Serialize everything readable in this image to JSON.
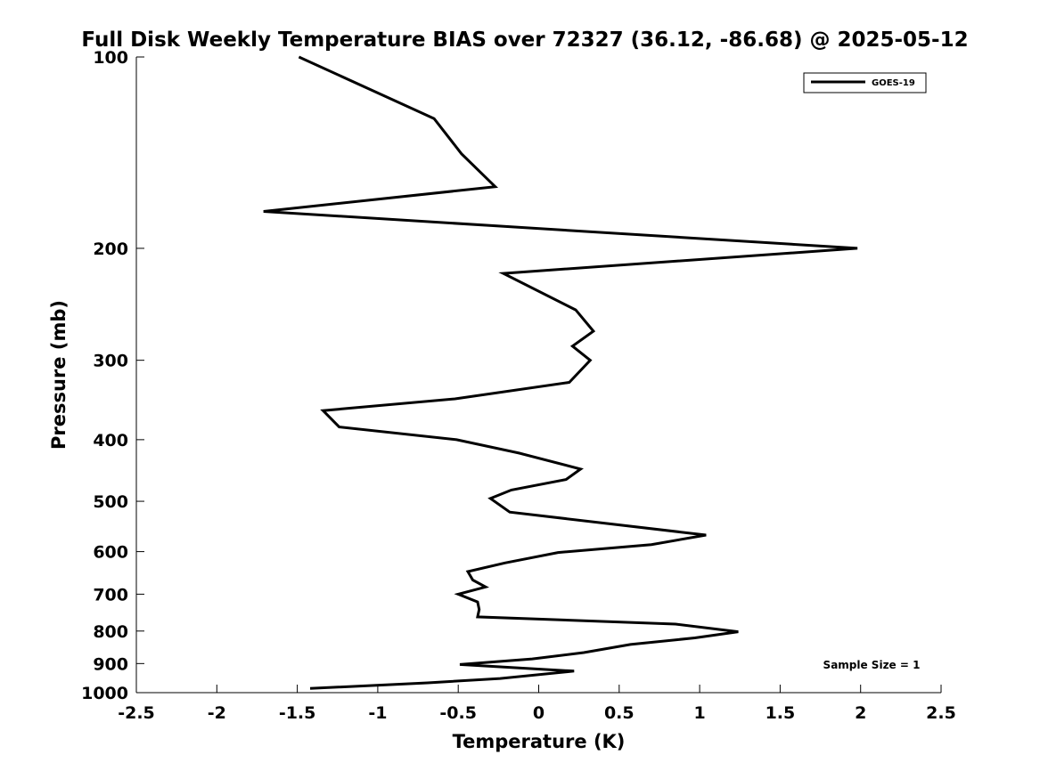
{
  "chart_data": {
    "type": "line",
    "title": "Full Disk Weekly Temperature BIAS over 72327 (36.12, -86.68) @ 2025-05-12",
    "xlabel": "Temperature (K)",
    "ylabel": "Pressure (mb)",
    "xlim": [
      -2.5,
      2.5
    ],
    "ylim": [
      1000,
      100
    ],
    "yscale": "log",
    "x_ticks": [
      "-2.5",
      "-2",
      "-1.5",
      "-1",
      "-0.5",
      "0",
      "0.5",
      "1",
      "1.5",
      "2",
      "2.5"
    ],
    "y_ticks": [
      "100",
      "200",
      "300",
      "400",
      "500",
      "600",
      "700",
      "800",
      "900",
      "1000"
    ],
    "legend": {
      "placement": "top-right",
      "entries": [
        "GOES-19"
      ]
    },
    "annotation": "Sample Size = 1",
    "grid": false,
    "line_color": "#000000",
    "series": [
      {
        "name": "GOES-19",
        "points": [
          {
            "x": -1.49,
            "p": 100
          },
          {
            "x": -0.65,
            "p": 125
          },
          {
            "x": -0.48,
            "p": 142
          },
          {
            "x": -0.27,
            "p": 160
          },
          {
            "x": -1.71,
            "p": 175
          },
          {
            "x": 1.98,
            "p": 200
          },
          {
            "x": -0.22,
            "p": 219
          },
          {
            "x": 0.23,
            "p": 250
          },
          {
            "x": 0.34,
            "p": 270
          },
          {
            "x": 0.21,
            "p": 285
          },
          {
            "x": 0.32,
            "p": 300
          },
          {
            "x": 0.19,
            "p": 325
          },
          {
            "x": -0.52,
            "p": 345
          },
          {
            "x": -1.34,
            "p": 360
          },
          {
            "x": -1.24,
            "p": 382
          },
          {
            "x": -0.51,
            "p": 400
          },
          {
            "x": -0.12,
            "p": 420
          },
          {
            "x": 0.26,
            "p": 445
          },
          {
            "x": 0.17,
            "p": 462
          },
          {
            "x": -0.17,
            "p": 480
          },
          {
            "x": -0.3,
            "p": 495
          },
          {
            "x": -0.18,
            "p": 520
          },
          {
            "x": 1.04,
            "p": 565
          },
          {
            "x": 0.7,
            "p": 585
          },
          {
            "x": 0.12,
            "p": 602
          },
          {
            "x": -0.21,
            "p": 625
          },
          {
            "x": -0.44,
            "p": 645
          },
          {
            "x": -0.41,
            "p": 665
          },
          {
            "x": -0.33,
            "p": 682
          },
          {
            "x": -0.5,
            "p": 700
          },
          {
            "x": -0.38,
            "p": 720
          },
          {
            "x": -0.37,
            "p": 740
          },
          {
            "x": -0.38,
            "p": 760
          },
          {
            "x": 0.85,
            "p": 780
          },
          {
            "x": 1.24,
            "p": 802
          },
          {
            "x": 0.97,
            "p": 820
          },
          {
            "x": 0.57,
            "p": 840
          },
          {
            "x": 0.28,
            "p": 865
          },
          {
            "x": -0.04,
            "p": 885
          },
          {
            "x": -0.49,
            "p": 903
          },
          {
            "x": 0.22,
            "p": 925
          },
          {
            "x": -0.24,
            "p": 950
          },
          {
            "x": -0.69,
            "p": 965
          },
          {
            "x": -1.42,
            "p": 985
          }
        ]
      }
    ]
  }
}
